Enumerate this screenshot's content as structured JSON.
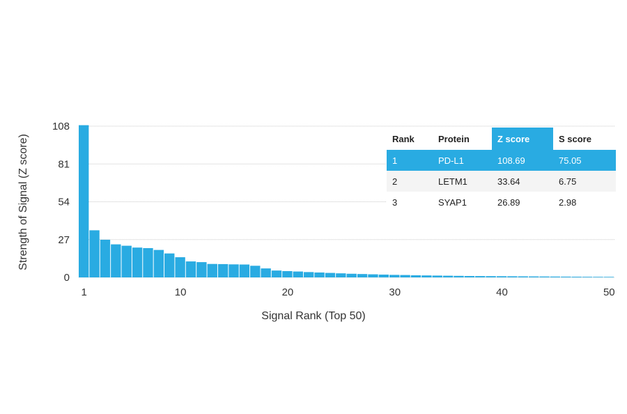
{
  "chart_data": {
    "type": "bar",
    "xlabel": "Signal Rank (Top 50)",
    "ylabel": "Strength of Signal (Z score)",
    "ylim": [
      0,
      108
    ],
    "yticks": [
      0,
      27,
      54,
      81,
      108
    ],
    "xticks": [
      1,
      10,
      20,
      30,
      40,
      50
    ],
    "grid": "horizontal dotted",
    "bar_color": "#29abe2",
    "highlight_color": "#29abe2",
    "x": [
      1,
      2,
      3,
      4,
      5,
      6,
      7,
      8,
      9,
      10,
      11,
      12,
      13,
      14,
      15,
      16,
      17,
      18,
      19,
      20,
      21,
      22,
      23,
      24,
      25,
      26,
      27,
      28,
      29,
      30,
      31,
      32,
      33,
      34,
      35,
      36,
      37,
      38,
      39,
      40,
      41,
      42,
      43,
      44,
      45,
      46,
      47,
      48,
      49,
      50
    ],
    "values": [
      108.69,
      33.64,
      26.89,
      23.6,
      22.6,
      21.3,
      20.9,
      19.6,
      17.1,
      14.4,
      11.4,
      10.9,
      9.6,
      9.5,
      9.3,
      9.2,
      8.3,
      6.4,
      4.9,
      4.5,
      4.2,
      3.8,
      3.5,
      3.2,
      2.9,
      2.6,
      2.4,
      2.2,
      2.0,
      1.8,
      1.7,
      1.5,
      1.4,
      1.3,
      1.2,
      1.1,
      1.0,
      0.95,
      0.9,
      0.85,
      0.8,
      0.75,
      0.7,
      0.65,
      0.6,
      0.55,
      0.5,
      0.45,
      0.42,
      0.4
    ],
    "table": {
      "headers": [
        "Rank",
        "Protein",
        "Z score",
        "S score"
      ],
      "highlight_column": 2,
      "rows": [
        [
          "1",
          "PD-L1",
          "108.69",
          "75.05"
        ],
        [
          "2",
          "LETM1",
          "33.64",
          "6.75"
        ],
        [
          "3",
          "SYAP1",
          "26.89",
          "2.98"
        ]
      ],
      "highlight_row": 0
    }
  }
}
